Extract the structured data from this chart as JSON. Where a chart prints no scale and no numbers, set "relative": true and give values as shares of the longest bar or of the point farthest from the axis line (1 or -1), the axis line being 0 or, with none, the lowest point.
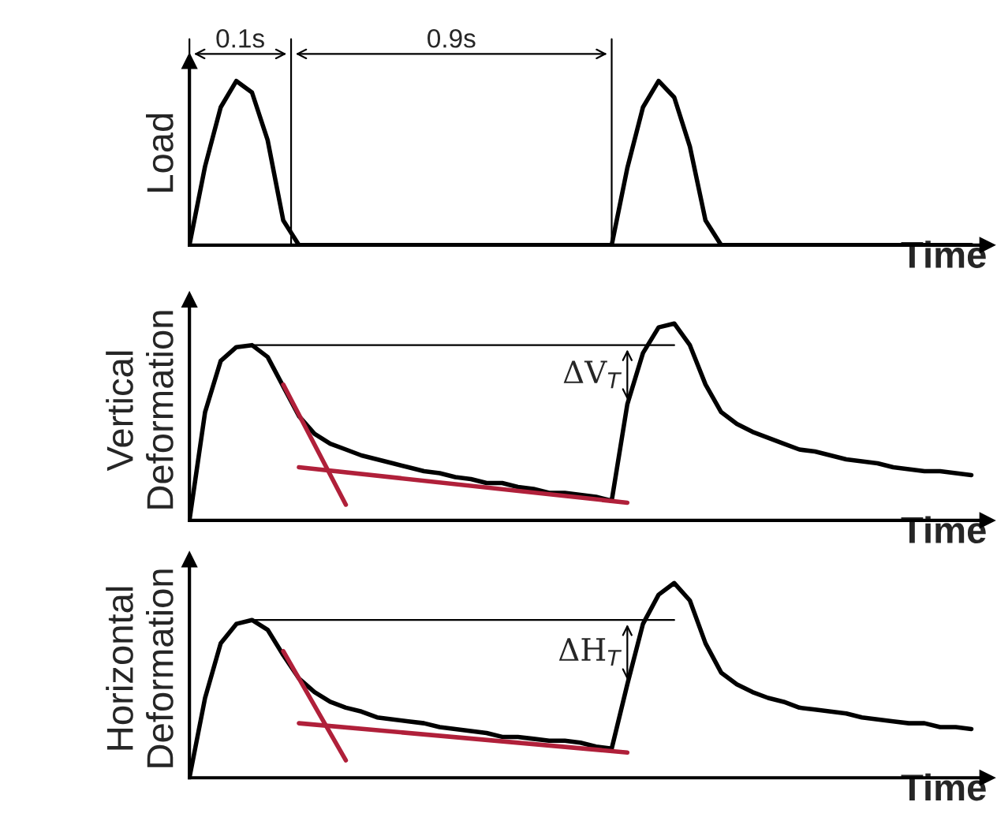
{
  "chart_data": [
    {
      "type": "line",
      "relative": true,
      "ylabel": "Load",
      "xlabel": "Time",
      "tick_labels": false,
      "annotations": [
        "0.1s",
        "0.9s"
      ],
      "categories": [
        null,
        null,
        null,
        null,
        null,
        null,
        null,
        null,
        null,
        null,
        null,
        null,
        null,
        null,
        null,
        null,
        null,
        null,
        null,
        null,
        null,
        null,
        null,
        null,
        null,
        null,
        null,
        null,
        null,
        null,
        null,
        null,
        null,
        null,
        null,
        null,
        null,
        null,
        null,
        null,
        null,
        null,
        null,
        null,
        null,
        null,
        null,
        null,
        null,
        null,
        null
      ],
      "series": [
        {
          "color": "#000000",
          "values": [
            0,
            0.48,
            0.84,
            1,
            0.93,
            0.64,
            0.15,
            0,
            0,
            0,
            0,
            0,
            0,
            0,
            0,
            0,
            0,
            0,
            0,
            0,
            0,
            0,
            0,
            0,
            0,
            0,
            0,
            0,
            0.47,
            0.84,
            1,
            0.9,
            0.6,
            0.15,
            0,
            0,
            0,
            0,
            0,
            0,
            0,
            0,
            0,
            0,
            0,
            0,
            0,
            0,
            0,
            0,
            0
          ]
        }
      ]
    },
    {
      "type": "line",
      "relative": true,
      "ylabel": "Vertical\nDeformation",
      "xlabel": "Time",
      "tick_labels": false,
      "annotations": [
        "ΔV$_{T}$"
      ],
      "ref_lines": [
        {
          "axis": "y",
          "value": 0.89,
          "color": "#000000"
        }
      ],
      "categories": [
        null,
        null,
        null,
        null,
        null,
        null,
        null,
        null,
        null,
        null,
        null,
        null,
        null,
        null,
        null,
        null,
        null,
        null,
        null,
        null,
        null,
        null,
        null,
        null,
        null,
        null,
        null,
        null,
        null,
        null,
        null,
        null,
        null,
        null,
        null,
        null,
        null,
        null,
        null,
        null,
        null,
        null,
        null,
        null,
        null,
        null,
        null,
        null,
        null,
        null,
        null
      ],
      "series": [
        {
          "color": "#000000",
          "values": [
            0,
            0.55,
            0.81,
            0.88,
            0.89,
            0.83,
            0.68,
            0.53,
            0.44,
            0.39,
            0.36,
            0.33,
            0.31,
            0.29,
            0.27,
            0.25,
            0.24,
            0.22,
            0.21,
            0.19,
            0.19,
            0.17,
            0.16,
            0.14,
            0.14,
            0.13,
            0.12,
            0.1,
            0.59,
            0.85,
            0.98,
            1,
            0.89,
            0.69,
            0.55,
            0.49,
            0.45,
            0.42,
            0.39,
            0.36,
            0.35,
            0.33,
            0.31,
            0.3,
            0.29,
            0.27,
            0.26,
            0.25,
            0.25,
            0.24,
            0.23
          ]
        },
        {
          "color": "#b0203a",
          "values": [
            null,
            null,
            null,
            null,
            null,
            null,
            0.69,
            null,
            null,
            null,
            0.08,
            null,
            null,
            null,
            null,
            null,
            null,
            null,
            null,
            null,
            null,
            null,
            null,
            null,
            null,
            null,
            null,
            null,
            null,
            null,
            null,
            null,
            null,
            null,
            null,
            null,
            null,
            null,
            null,
            null,
            null,
            null,
            null,
            null,
            null,
            null,
            null,
            null,
            null,
            null,
            null
          ]
        },
        {
          "color": "#b0203a",
          "values": [
            null,
            null,
            null,
            null,
            null,
            null,
            null,
            0.27,
            null,
            null,
            null,
            null,
            null,
            null,
            null,
            null,
            null,
            null,
            null,
            null,
            null,
            null,
            null,
            null,
            null,
            null,
            null,
            null,
            0.09,
            null,
            null,
            null,
            null,
            null,
            null,
            null,
            null,
            null,
            null,
            null,
            null,
            null,
            null,
            null,
            null,
            null,
            null,
            null,
            null,
            null,
            null
          ]
        }
      ]
    },
    {
      "type": "line",
      "relative": true,
      "ylabel": "Horizontal\nDeformation",
      "xlabel": "Time",
      "tick_labels": false,
      "annotations": [
        "ΔH$_{T}$"
      ],
      "ref_lines": [
        {
          "axis": "y",
          "value": 0.81,
          "color": "#000000"
        }
      ],
      "categories": [
        null,
        null,
        null,
        null,
        null,
        null,
        null,
        null,
        null,
        null,
        null,
        null,
        null,
        null,
        null,
        null,
        null,
        null,
        null,
        null,
        null,
        null,
        null,
        null,
        null,
        null,
        null,
        null,
        null,
        null,
        null,
        null,
        null,
        null,
        null,
        null,
        null,
        null,
        null,
        null,
        null,
        null,
        null,
        null,
        null,
        null,
        null,
        null,
        null,
        null,
        null
      ],
      "series": [
        {
          "color": "#000000",
          "values": [
            0,
            0.41,
            0.69,
            0.79,
            0.81,
            0.76,
            0.63,
            0.51,
            0.44,
            0.39,
            0.36,
            0.34,
            0.31,
            0.3,
            0.29,
            0.28,
            0.26,
            0.25,
            0.24,
            0.23,
            0.21,
            0.21,
            0.2,
            0.19,
            0.19,
            0.18,
            0.16,
            0.15,
            0.48,
            0.79,
            0.94,
            1,
            0.91,
            0.69,
            0.54,
            0.48,
            0.44,
            0.41,
            0.39,
            0.36,
            0.35,
            0.34,
            0.33,
            0.31,
            0.3,
            0.29,
            0.28,
            0.28,
            0.26,
            0.26,
            0.25
          ]
        },
        {
          "color": "#b0203a",
          "values": [
            null,
            null,
            null,
            null,
            null,
            null,
            0.65,
            null,
            null,
            null,
            0.09,
            null,
            null,
            null,
            null,
            null,
            null,
            null,
            null,
            null,
            null,
            null,
            null,
            null,
            null,
            null,
            null,
            null,
            null,
            null,
            null,
            null,
            null,
            null,
            null,
            null,
            null,
            null,
            null,
            null,
            null,
            null,
            null,
            null,
            null,
            null,
            null,
            null,
            null,
            null,
            null
          ]
        },
        {
          "color": "#b0203a",
          "values": [
            null,
            null,
            null,
            null,
            null,
            null,
            null,
            0.28,
            null,
            null,
            null,
            null,
            null,
            null,
            null,
            null,
            null,
            null,
            null,
            null,
            null,
            null,
            null,
            null,
            null,
            null,
            null,
            null,
            0.13,
            null,
            null,
            null,
            null,
            null,
            null,
            null,
            null,
            null,
            null,
            null,
            null,
            null,
            null,
            null,
            null,
            null,
            null,
            null,
            null,
            null,
            null
          ]
        }
      ]
    }
  ]
}
